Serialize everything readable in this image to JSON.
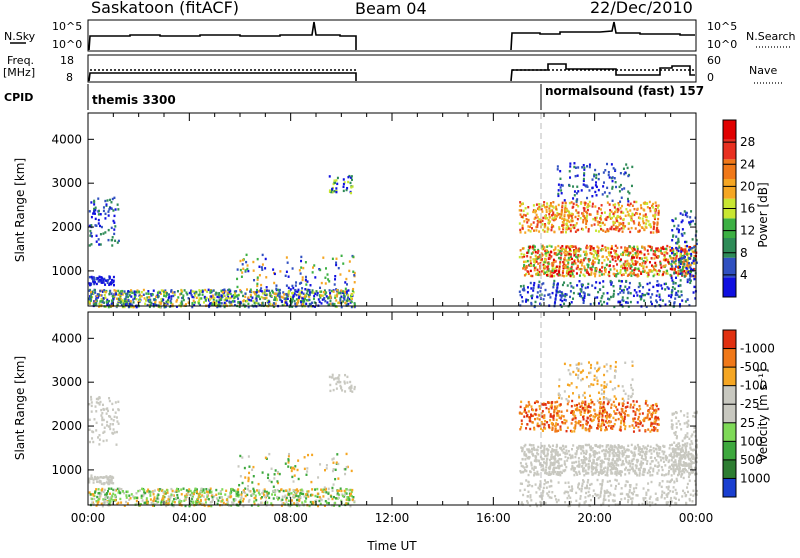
{
  "chart_data": [
    {
      "type": "line",
      "role": "header",
      "title_left": "Saskatoon (fitACF)",
      "title_center": "Beam 04",
      "title_right": "22/Dec/2010",
      "panels": [
        {
          "left_label": "N.Sky",
          "left_ticks": [
            "10^5",
            "10^0"
          ],
          "right_label": "N.Search",
          "right_ticks": [
            "10^5",
            "10^0"
          ]
        },
        {
          "left_label_1": "Freq.",
          "left_label_2": "[MHz]",
          "left_ticks": [
            "18",
            "8"
          ],
          "right_label": "Nave",
          "right_ticks": [
            "60",
            "0"
          ]
        }
      ],
      "cpid_label": "CPID",
      "cpid_programs": [
        {
          "name": "themis 3300",
          "start_hour": 0
        },
        {
          "name": "normalsound (fast) 157",
          "start_hour": 18
        }
      ]
    },
    {
      "type": "heatmap",
      "role": "power",
      "ylabel": "Slant Range [km]",
      "yticks": [
        1000,
        2000,
        3000,
        4000
      ],
      "ylim": [
        200,
        4600
      ],
      "xlim_hours": [
        0,
        24
      ],
      "colorbar_label": "Power [dB]",
      "colorbar_ticks": [
        "4",
        "8",
        "12",
        "16",
        "20",
        "24",
        "28"
      ],
      "colors": [
        "#1010e0",
        "#3050c0",
        "#2e8b57",
        "#3cb043",
        "#c8e632",
        "#f5a623",
        "#f07818",
        "#e83020",
        "#e00000"
      ]
    },
    {
      "type": "heatmap",
      "role": "velocity",
      "ylabel": "Slant Range [km]",
      "yticks": [
        1000,
        2000,
        3000,
        4000
      ],
      "ylim": [
        200,
        4600
      ],
      "xlim_hours": [
        0,
        24
      ],
      "xlabel": "Time UT",
      "xticks": [
        "00:00",
        "04:00",
        "08:00",
        "12:00",
        "16:00",
        "20:00",
        "00:00"
      ],
      "colorbar_label": "Velocity [m s⁻¹]",
      "colorbar_ticks": [
        "1000",
        "500",
        "100",
        "25",
        "-25",
        "-100",
        "-500",
        "-1000"
      ],
      "colors": [
        "#1a3fd0",
        "#2e7d32",
        "#3da83d",
        "#7ed957",
        "#c8c8c0",
        "#c8c8c0",
        "#f5a623",
        "#f07818",
        "#e03010"
      ]
    }
  ]
}
